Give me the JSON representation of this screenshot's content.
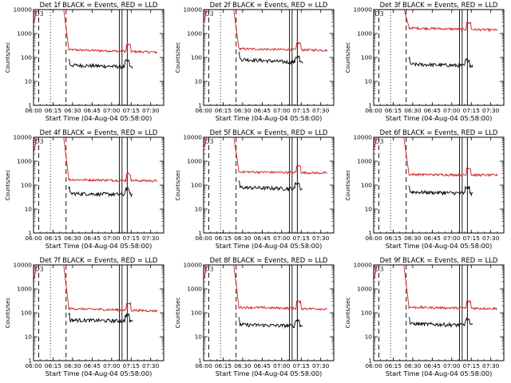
{
  "colors": {
    "background": "#ffffff",
    "axis": "#000000",
    "events": "#000000",
    "lld": "#d41c1c"
  },
  "chart_data": [
    {
      "type": "line",
      "title": "Det 1f BLACK = Events, RED = LLD",
      "xlabel": "Start Time (04-Aug-04 05:58:00)",
      "ylabel": "Counts/sec",
      "y_scale": "log",
      "ylim": [
        1,
        10000
      ],
      "x_ticks": [
        "06:00",
        "06:15",
        "06:30",
        "06:45",
        "07:00",
        "07:15",
        "07:30"
      ],
      "y_ticks": [
        "1",
        "10",
        "100",
        "1000",
        "10000"
      ],
      "annotation": "D3",
      "series": [
        {
          "name": "LLD",
          "color": "#d41c1c",
          "level": 210,
          "end": 165
        },
        {
          "name": "Events",
          "color": "#000000",
          "level": 48,
          "end": 40
        }
      ],
      "dashed_lines": [
        "06:04",
        "06:25"
      ],
      "dotted_lines": [
        "06:13"
      ],
      "solid_lines": [
        "07:06",
        "07:08",
        "07:12"
      ]
    },
    {
      "type": "line",
      "title": "Det 2f BLACK = Events, RED = LLD",
      "xlabel": "Start Time (04-Aug-04 05:58:00)",
      "ylabel": "Counts/sec",
      "y_scale": "log",
      "ylim": [
        1,
        10000
      ],
      "x_ticks": [
        "06:00",
        "06:15",
        "06:30",
        "06:45",
        "07:00",
        "07:15",
        "07:30"
      ],
      "y_ticks": [
        "1",
        "10",
        "100",
        "1000",
        "10000"
      ],
      "annotation": "D3",
      "series": [
        {
          "name": "LLD",
          "color": "#d41c1c",
          "level": 230,
          "end": 200
        },
        {
          "name": "Events",
          "color": "#000000",
          "level": 85,
          "end": 60
        }
      ],
      "dashed_lines": [
        "06:04",
        "06:25"
      ],
      "dotted_lines": [
        "06:13"
      ],
      "solid_lines": [
        "07:06",
        "07:08",
        "07:12"
      ]
    },
    {
      "type": "line",
      "title": "Det 3f BLACK = Events, RED = LLD",
      "xlabel": "Start Time (04-Aug-04 05:58:00)",
      "ylabel": "Counts/sec",
      "y_scale": "log",
      "ylim": [
        1,
        10000
      ],
      "x_ticks": [
        "06:00",
        "06:15",
        "06:30",
        "06:45",
        "07:00",
        "07:15",
        "07:30"
      ],
      "y_ticks": [
        "1",
        "10",
        "100",
        "1000",
        "10000"
      ],
      "annotation": "D3",
      "series": [
        {
          "name": "LLD",
          "color": "#d41c1c",
          "level": 1700,
          "end": 1400
        },
        {
          "name": "Events",
          "color": "#000000",
          "level": 52,
          "end": 45
        }
      ],
      "dashed_lines": [
        "06:04",
        "06:25"
      ],
      "dotted_lines": [
        "06:13"
      ],
      "solid_lines": [
        "07:06",
        "07:08",
        "07:12"
      ]
    },
    {
      "type": "line",
      "title": "Det 4f BLACK = Events, RED = LLD",
      "xlabel": "Start Time (04-Aug-04 05:58:00)",
      "ylabel": "Counts/sec",
      "y_scale": "log",
      "ylim": [
        1,
        10000
      ],
      "x_ticks": [
        "06:00",
        "06:15",
        "06:30",
        "06:45",
        "07:00",
        "07:15",
        "07:30"
      ],
      "y_ticks": [
        "1",
        "10",
        "100",
        "1000",
        "10000"
      ],
      "annotation": "D3",
      "series": [
        {
          "name": "LLD",
          "color": "#d41c1c",
          "level": 170,
          "end": 150
        },
        {
          "name": "Events",
          "color": "#000000",
          "level": 45,
          "end": 40
        }
      ],
      "dashed_lines": [
        "06:04",
        "06:25"
      ],
      "dotted_lines": [
        "06:13"
      ],
      "solid_lines": [
        "07:06",
        "07:08",
        "07:12"
      ]
    },
    {
      "type": "line",
      "title": "Det 5f BLACK = Events, RED = LLD",
      "xlabel": "Start Time (04-Aug-04 05:58:00)",
      "ylabel": "Counts/sec",
      "y_scale": "log",
      "ylim": [
        1,
        10000
      ],
      "x_ticks": [
        "06:00",
        "06:15",
        "06:30",
        "06:45",
        "07:00",
        "07:15",
        "07:30"
      ],
      "y_ticks": [
        "1",
        "10",
        "100",
        "1000",
        "10000"
      ],
      "annotation": "D3",
      "series": [
        {
          "name": "LLD",
          "color": "#d41c1c",
          "level": 360,
          "end": 320
        },
        {
          "name": "Events",
          "color": "#000000",
          "level": 80,
          "end": 70
        }
      ],
      "dashed_lines": [
        "06:04",
        "06:25"
      ],
      "dotted_lines": [
        "06:13"
      ],
      "solid_lines": [
        "07:06",
        "07:08",
        "07:12"
      ]
    },
    {
      "type": "line",
      "title": "Det 6f BLACK = Events, RED = LLD",
      "xlabel": "Start Time (04-Aug-04 05:58:00)",
      "ylabel": "Counts/sec",
      "y_scale": "log",
      "ylim": [
        1,
        10000
      ],
      "x_ticks": [
        "06:00",
        "06:15",
        "06:30",
        "06:45",
        "07:00",
        "07:15",
        "07:30"
      ],
      "y_ticks": [
        "1",
        "10",
        "100",
        "1000",
        "10000"
      ],
      "annotation": "D3",
      "series": [
        {
          "name": "LLD",
          "color": "#d41c1c",
          "level": 280,
          "end": 260
        },
        {
          "name": "Events",
          "color": "#000000",
          "level": 52,
          "end": 45
        }
      ],
      "dashed_lines": [
        "06:04",
        "06:25"
      ],
      "dotted_lines": [
        "06:13"
      ],
      "solid_lines": [
        "07:06",
        "07:08",
        "07:12"
      ]
    },
    {
      "type": "line",
      "title": "Det 7f BLACK = Events, RED = LLD",
      "xlabel": "Start Time (04-Aug-04 05:58:00)",
      "ylabel": "Counts/sec",
      "y_scale": "log",
      "ylim": [
        1,
        10000
      ],
      "x_ticks": [
        "06:00",
        "06:15",
        "06:30",
        "06:45",
        "07:00",
        "07:15",
        "07:30"
      ],
      "y_ticks": [
        "1",
        "10",
        "100",
        "1000",
        "10000"
      ],
      "annotation": "D3",
      "series": [
        {
          "name": "LLD",
          "color": "#d41c1c",
          "level": 150,
          "end": 120
        },
        {
          "name": "Events",
          "color": "#000000",
          "level": 50,
          "end": 45
        }
      ],
      "dashed_lines": [
        "06:04",
        "06:25"
      ],
      "dotted_lines": [
        "06:13"
      ],
      "solid_lines": [
        "07:06",
        "07:08",
        "07:12"
      ]
    },
    {
      "type": "line",
      "title": "Det 8f BLACK = Events, RED = LLD",
      "xlabel": "Start Time (04-Aug-04 05:58:00)",
      "ylabel": "Counts/sec",
      "y_scale": "log",
      "ylim": [
        1,
        10000
      ],
      "x_ticks": [
        "06:00",
        "06:15",
        "06:30",
        "06:45",
        "07:00",
        "07:15",
        "07:30"
      ],
      "y_ticks": [
        "1",
        "10",
        "100",
        "1000",
        "10000"
      ],
      "annotation": "D3",
      "series": [
        {
          "name": "LLD",
          "color": "#d41c1c",
          "level": 170,
          "end": 145
        },
        {
          "name": "Events",
          "color": "#000000",
          "level": 32,
          "end": 28
        }
      ],
      "dashed_lines": [
        "06:04",
        "06:25"
      ],
      "dotted_lines": [
        "06:13"
      ],
      "solid_lines": [
        "07:06",
        "07:08",
        "07:12"
      ]
    },
    {
      "type": "line",
      "title": "Det 9f BLACK = Events, RED = LLD",
      "xlabel": "Start Time (04-Aug-04 05:58:00)",
      "ylabel": "Counts/sec",
      "y_scale": "log",
      "ylim": [
        1,
        10000
      ],
      "x_ticks": [
        "06:00",
        "06:15",
        "06:30",
        "06:45",
        "07:00",
        "07:15",
        "07:30"
      ],
      "y_ticks": [
        "1",
        "10",
        "100",
        "1000",
        "10000"
      ],
      "annotation": "D3",
      "series": [
        {
          "name": "LLD",
          "color": "#d41c1c",
          "level": 170,
          "end": 150
        },
        {
          "name": "Events",
          "color": "#000000",
          "level": 35,
          "end": 30
        }
      ],
      "dashed_lines": [
        "06:04",
        "06:25"
      ],
      "dotted_lines": [
        "06:13"
      ],
      "solid_lines": [
        "07:06",
        "07:08",
        "07:12"
      ]
    }
  ]
}
